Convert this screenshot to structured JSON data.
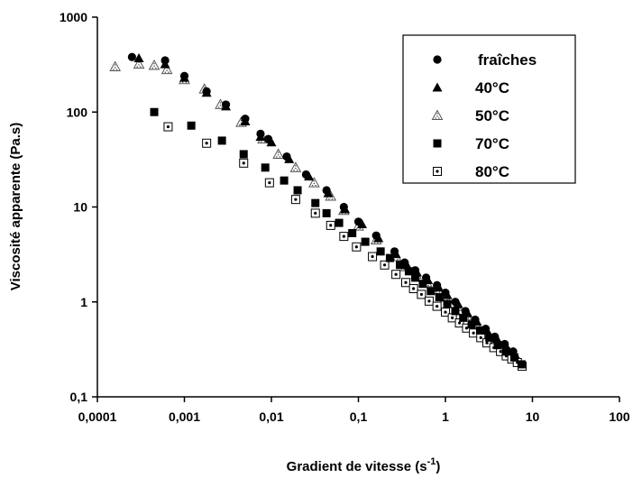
{
  "chart_data": {
    "type": "scatter",
    "xscale": "log",
    "yscale": "log",
    "xlim": [
      0.0001,
      100
    ],
    "ylim": [
      0.1,
      1000
    ],
    "xlabel": "Gradient de vitesse (s",
    "xlabel_sup": "-1",
    "xlabel_end": ")",
    "ylabel": "Viscosité apparente (Pa.s)",
    "xticks": [
      "0,0001",
      "0,001",
      "0,01",
      "0,1",
      "1",
      "10",
      "100"
    ],
    "yticks": [
      "0,1",
      "1",
      "10",
      "100",
      "1000"
    ],
    "legend_position": "top-right",
    "series": [
      {
        "name": "fraîches",
        "marker": "circle",
        "x": [
          0.00025,
          0.0006,
          0.001,
          0.0018,
          0.003,
          0.005,
          0.0075,
          0.0092,
          0.015,
          0.025,
          0.043,
          0.068,
          0.1,
          0.16,
          0.26,
          0.34,
          0.45,
          0.6,
          0.8,
          1.0,
          1.3,
          1.7,
          2.2,
          2.9,
          3.7,
          4.8,
          6.0
        ],
        "y": [
          380,
          350,
          240,
          165,
          120,
          85,
          59,
          52,
          34,
          22,
          15,
          10,
          7,
          5,
          3.4,
          2.6,
          2.15,
          1.8,
          1.5,
          1.25,
          1.0,
          0.8,
          0.65,
          0.52,
          0.43,
          0.36,
          0.3
        ]
      },
      {
        "name": "40°C",
        "marker": "triangle",
        "x": [
          0.0003,
          0.0006,
          0.001,
          0.0018,
          0.003,
          0.005,
          0.0075,
          0.01,
          0.016,
          0.027,
          0.045,
          0.07,
          0.11,
          0.17,
          0.27,
          0.36,
          0.47,
          0.63,
          0.84,
          1.05,
          1.4,
          1.8,
          2.3,
          3.0,
          3.9,
          5.0,
          6.3
        ],
        "y": [
          370,
          320,
          230,
          160,
          115,
          80,
          55,
          48,
          32,
          21,
          14,
          9.5,
          6.6,
          4.7,
          3.2,
          2.45,
          2.05,
          1.7,
          1.42,
          1.18,
          0.95,
          0.76,
          0.62,
          0.5,
          0.41,
          0.34,
          0.28
        ]
      },
      {
        "name": "50°C",
        "marker": "triangle-dotted",
        "x": [
          0.00016,
          0.0003,
          0.00045,
          0.00063,
          0.001,
          0.0017,
          0.0026,
          0.0045,
          0.008,
          0.012,
          0.019,
          0.031,
          0.048,
          0.068,
          0.1,
          0.16,
          0.27,
          0.35,
          0.46,
          0.61,
          0.82,
          1.0,
          1.35,
          1.75,
          2.25,
          2.95,
          3.8,
          4.9,
          6.2
        ],
        "y": [
          300,
          320,
          310,
          280,
          220,
          175,
          120,
          78,
          52,
          36,
          26,
          18,
          13,
          9.2,
          6.3,
          4.5,
          3.0,
          2.35,
          1.95,
          1.6,
          1.35,
          1.12,
          0.9,
          0.72,
          0.58,
          0.47,
          0.39,
          0.32,
          0.26
        ]
      },
      {
        "name": "70°C",
        "marker": "square",
        "x": [
          0.00045,
          0.0012,
          0.0027,
          0.0048,
          0.0085,
          0.014,
          0.02,
          0.032,
          0.043,
          0.06,
          0.085,
          0.12,
          0.18,
          0.23,
          0.3,
          0.38,
          0.45,
          0.55,
          0.68,
          0.85,
          1.05,
          1.3,
          1.6,
          2.0,
          2.5,
          3.2,
          4.0,
          5.0,
          6.2,
          7.5
        ],
        "y": [
          100,
          72,
          50,
          36,
          26,
          19,
          15,
          11,
          8.6,
          6.8,
          5.3,
          4.3,
          3.4,
          2.9,
          2.45,
          2.1,
          1.8,
          1.55,
          1.3,
          1.12,
          0.95,
          0.8,
          0.68,
          0.58,
          0.5,
          0.42,
          0.35,
          0.3,
          0.26,
          0.22
        ]
      },
      {
        "name": "80°C",
        "marker": "square-dotted",
        "x": [
          0.00065,
          0.0018,
          0.0048,
          0.0095,
          0.019,
          0.032,
          0.048,
          0.068,
          0.095,
          0.145,
          0.2,
          0.27,
          0.35,
          0.43,
          0.53,
          0.65,
          0.8,
          1.0,
          1.2,
          1.45,
          1.75,
          2.1,
          2.55,
          3.0,
          3.6,
          4.3,
          5.0,
          5.8,
          6.7,
          7.6
        ],
        "y": [
          70,
          47,
          29,
          18,
          12,
          8.6,
          6.4,
          4.9,
          3.8,
          3.0,
          2.45,
          1.95,
          1.6,
          1.38,
          1.2,
          1.02,
          0.9,
          0.78,
          0.68,
          0.6,
          0.53,
          0.47,
          0.42,
          0.37,
          0.33,
          0.3,
          0.27,
          0.25,
          0.23,
          0.21
        ]
      }
    ]
  }
}
